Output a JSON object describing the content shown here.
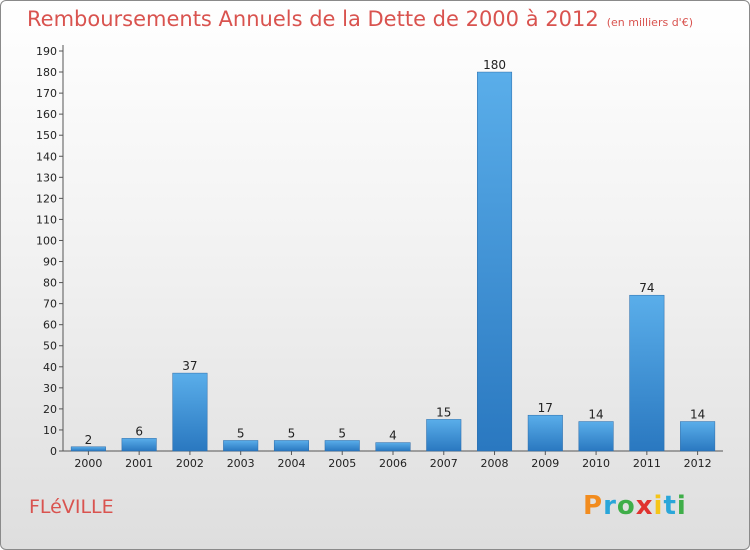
{
  "header": {
    "title": "Remboursements Annuels de la Dette de 2000 à 2012",
    "unit": "(en milliers d'€)"
  },
  "commune": "FLéVILLE",
  "logo": {
    "text": "Proxiti",
    "letters": [
      "P",
      "r",
      "o",
      "x",
      "i",
      "t",
      "i"
    ],
    "colors": [
      "#f28c1e",
      "#2aa6d9",
      "#3fae49",
      "#e0322f",
      "#f5c518",
      "#2aa6d9",
      "#3fae49"
    ]
  },
  "chart_data": {
    "type": "bar",
    "categories": [
      "2000",
      "2001",
      "2002",
      "2003",
      "2004",
      "2005",
      "2006",
      "2007",
      "2008",
      "2009",
      "2010",
      "2011",
      "2012"
    ],
    "values": [
      2,
      6,
      37,
      5,
      5,
      5,
      4,
      15,
      180,
      17,
      14,
      74,
      14
    ],
    "title": "Remboursements Annuels de la Dette de 2000 à 2012",
    "xlabel": "",
    "ylabel": "",
    "ylim": [
      0,
      190
    ],
    "yticks": [
      0,
      10,
      20,
      30,
      40,
      50,
      60,
      70,
      80,
      90,
      100,
      110,
      120,
      130,
      140,
      150,
      160,
      170,
      180,
      190
    ],
    "grid": false,
    "bar_color": "#3a8fd6"
  }
}
